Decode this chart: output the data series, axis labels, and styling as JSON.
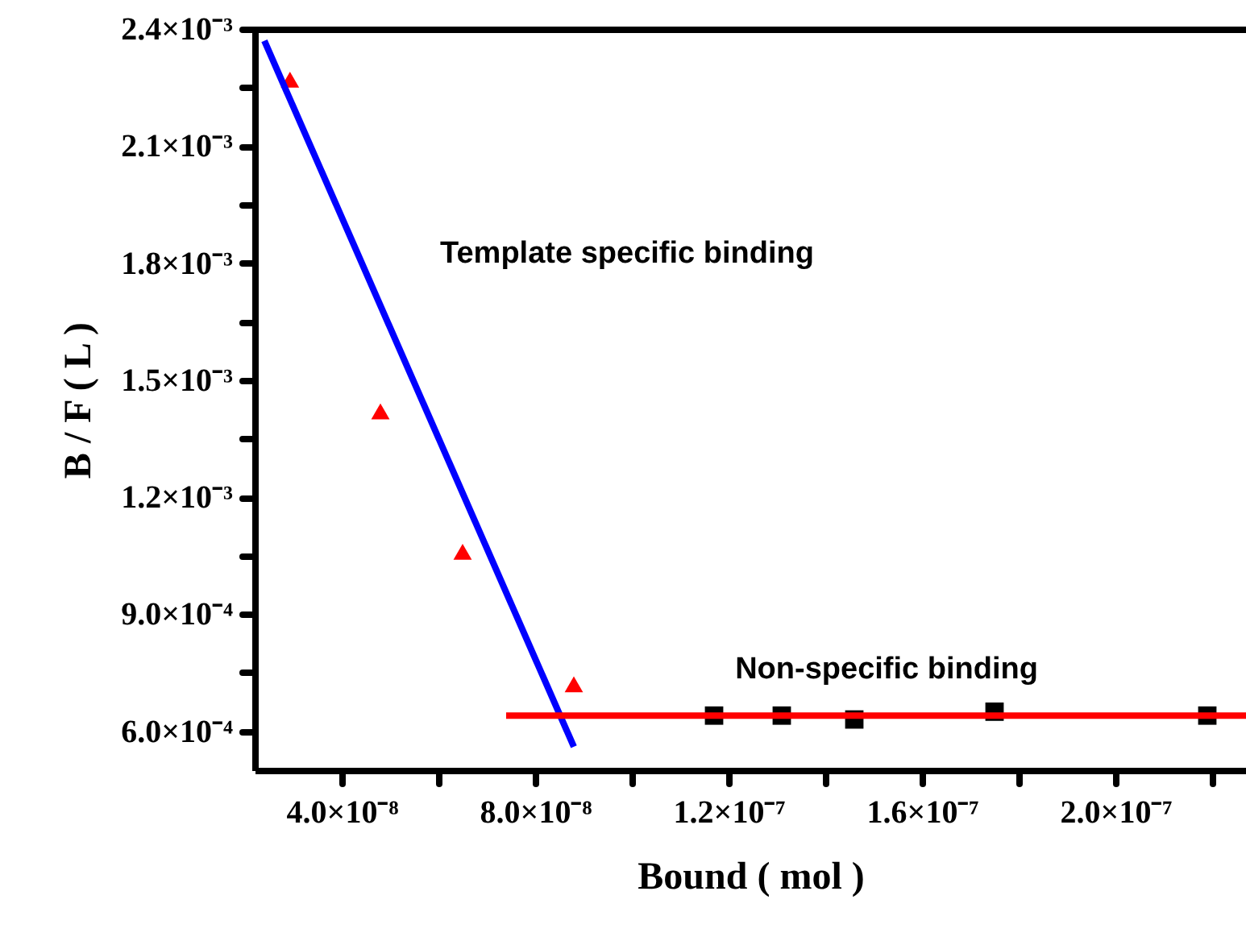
{
  "chart_data": {
    "type": "scatter",
    "xlabel": "Bound ( mol )",
    "ylabel": "B / F ( L )",
    "xlim": [
      2.2e-08,
      2.27e-07
    ],
    "ylim": [
      0.0005,
      0.0024
    ],
    "xticks": [
      {
        "value": 4e-08,
        "label": "4.0×10⁻⁸"
      },
      {
        "value": 6e-08,
        "label": null
      },
      {
        "value": 8e-08,
        "label": "8.0×10⁻⁸"
      },
      {
        "value": 1e-07,
        "label": null
      },
      {
        "value": 1.2e-07,
        "label": "1.2×10⁻⁷"
      },
      {
        "value": 1.4e-07,
        "label": null
      },
      {
        "value": 1.6e-07,
        "label": "1.6×10⁻⁷"
      },
      {
        "value": 1.8e-07,
        "label": null
      },
      {
        "value": 2e-07,
        "label": "2.0×10⁻⁷"
      },
      {
        "value": 2.2e-07,
        "label": null
      }
    ],
    "yticks": [
      {
        "value": 0.0006,
        "label": "6.0×10⁻⁴"
      },
      {
        "value": 0.00075,
        "label": null
      },
      {
        "value": 0.0009,
        "label": "9.0×10⁻⁴"
      },
      {
        "value": 0.00105,
        "label": null
      },
      {
        "value": 0.0012,
        "label": "1.2×10⁻³"
      },
      {
        "value": 0.00135,
        "label": null
      },
      {
        "value": 0.0015,
        "label": "1.5×10⁻³"
      },
      {
        "value": 0.00165,
        "label": null
      },
      {
        "value": 0.0018,
        "label": "1.8×10⁻³"
      },
      {
        "value": 0.00195,
        "label": null
      },
      {
        "value": 0.0021,
        "label": "2.1×10⁻³"
      },
      {
        "value": 0.00225,
        "label": null
      },
      {
        "value": 0.0024,
        "label": "2.4×10⁻³"
      }
    ],
    "series": [
      {
        "type": "scatter",
        "marker": "triangle",
        "color": "#ff0000",
        "x": [
          2.93e-08,
          4.8e-08,
          6.5e-08,
          8.8e-08
        ],
        "values": [
          0.00227,
          0.00142,
          0.00106,
          0.00072
        ]
      },
      {
        "type": "scatter",
        "marker": "square",
        "color": "#000000",
        "x": [
          1.17e-07,
          1.31e-07,
          1.46e-07,
          1.75e-07,
          2.19e-07
        ],
        "values": [
          0.00064,
          0.00064,
          0.00063,
          0.00065,
          0.00064
        ]
      },
      {
        "type": "line",
        "color": "#0000ff",
        "x": [
          2.4e-08,
          8.8e-08
        ],
        "values": [
          0.00237,
          0.00056
        ]
      },
      {
        "type": "line",
        "color": "#ff0000",
        "x": [
          7.4e-08,
          2.27e-07
        ],
        "values": [
          0.00064,
          0.00064
        ]
      }
    ],
    "annotations": [
      "Template specific binding",
      "Non-specific binding"
    ]
  }
}
